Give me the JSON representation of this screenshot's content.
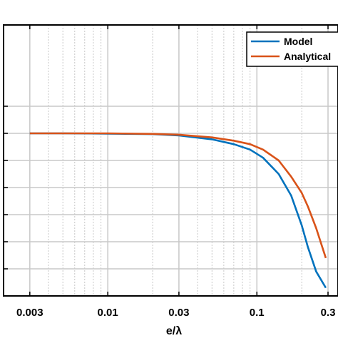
{
  "chart_data": {
    "type": "line",
    "xscale": "log",
    "xlabel": "e/λ",
    "xlim": [
      0.002,
      0.35
    ],
    "ylim": [
      0,
      1
    ],
    "x_ticks": [
      0.003,
      0.01,
      0.03,
      0.1,
      0.3
    ],
    "x_tick_labels": [
      "0.003",
      "0.01",
      "0.03",
      "0.1",
      "0.3"
    ],
    "y_gridlines": [
      0.1,
      0.2,
      0.3,
      0.4,
      0.5,
      0.6,
      0.7
    ],
    "grid": true,
    "minor_grid_x": true,
    "legend_position": "top-right",
    "series": [
      {
        "name": "Model",
        "color": "#0072BD",
        "x": [
          0.003,
          0.005,
          0.01,
          0.02,
          0.03,
          0.05,
          0.07,
          0.09,
          0.11,
          0.14,
          0.17,
          0.2,
          0.22,
          0.25,
          0.29
        ],
        "y": [
          0.6,
          0.6,
          0.599,
          0.597,
          0.592,
          0.578,
          0.56,
          0.54,
          0.51,
          0.45,
          0.37,
          0.26,
          0.18,
          0.09,
          0.03
        ]
      },
      {
        "name": "Analytical",
        "color": "#D95319",
        "x": [
          0.003,
          0.005,
          0.01,
          0.02,
          0.03,
          0.05,
          0.07,
          0.09,
          0.11,
          0.14,
          0.17,
          0.2,
          0.22,
          0.25,
          0.29
        ],
        "y": [
          0.6,
          0.6,
          0.6,
          0.598,
          0.595,
          0.585,
          0.573,
          0.56,
          0.54,
          0.5,
          0.44,
          0.38,
          0.33,
          0.25,
          0.14
        ]
      }
    ]
  }
}
